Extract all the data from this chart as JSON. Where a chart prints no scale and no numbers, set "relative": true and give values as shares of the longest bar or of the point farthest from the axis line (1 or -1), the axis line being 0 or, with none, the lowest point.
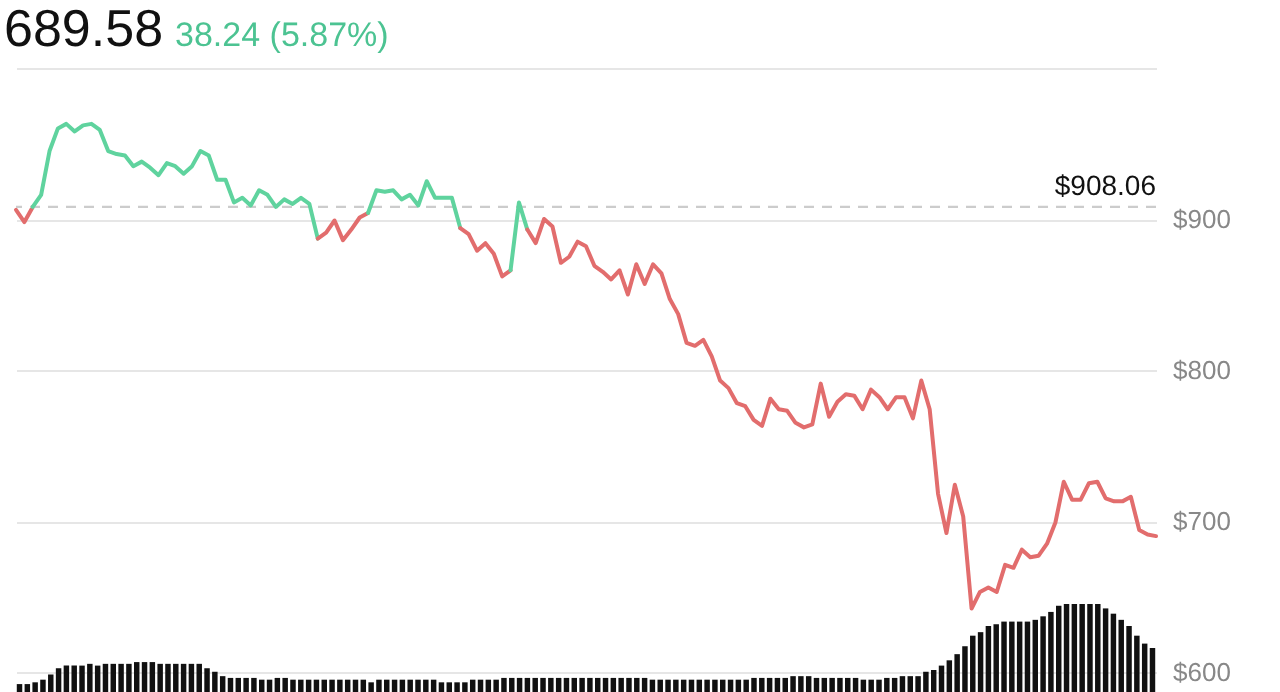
{
  "chart_data": [
    {
      "type": "line",
      "title": "689.58",
      "subtitle": "38.24 (5.87%)",
      "categories": [
        null,
        null,
        null,
        null,
        null,
        null,
        null,
        null,
        null,
        null,
        null,
        null,
        null,
        null,
        null,
        null,
        null,
        null,
        null,
        null,
        null,
        null,
        null,
        null,
        null,
        null,
        null,
        null,
        null,
        null,
        null,
        null,
        null,
        null,
        null,
        null,
        null,
        null,
        null,
        null,
        null,
        null,
        null,
        null,
        null,
        null,
        null,
        null,
        null,
        null,
        null,
        null,
        null,
        null,
        null,
        null,
        null,
        null,
        null,
        null,
        null,
        null,
        null,
        null,
        null,
        null,
        null,
        null,
        null,
        null,
        null,
        null,
        null,
        null,
        null,
        null,
        null,
        null,
        null,
        null,
        null,
        null,
        null,
        null,
        null,
        null,
        null,
        null,
        null,
        null,
        null,
        null,
        null,
        null,
        null,
        null,
        null,
        null,
        null,
        null,
        null,
        null,
        null,
        null,
        null,
        null,
        null,
        null,
        null,
        null,
        null,
        null,
        null,
        null,
        null,
        null,
        null,
        null,
        null,
        null,
        null,
        null,
        null,
        null,
        null,
        null,
        null,
        null,
        null,
        null,
        null,
        null,
        null,
        null,
        null,
        null,
        null
      ],
      "series": [
        {
          "color": "#e26d6d",
          "values": [
            906,
            898,
            908,
            null,
            null,
            null,
            null,
            null,
            null,
            null,
            null,
            null,
            null,
            null,
            null,
            null,
            null,
            null,
            null,
            null,
            null,
            null,
            null,
            null,
            null,
            null,
            null,
            null,
            null,
            null,
            null,
            null,
            null,
            null,
            null,
            null,
            null,
            null,
            null,
            null,
            null,
            null,
            null,
            null,
            null,
            null,
            null,
            null,
            null,
            null,
            null,
            null,
            null,
            null,
            null,
            null,
            null,
            null,
            null,
            null,
            null,
            null,
            null,
            null,
            null,
            null,
            null,
            null,
            null,
            null,
            null,
            null,
            null,
            null,
            null,
            null,
            null,
            null,
            null,
            null,
            null,
            null,
            null,
            null,
            null,
            null,
            null,
            null,
            null,
            null,
            null,
            null,
            null,
            null,
            null,
            null,
            null,
            null,
            null,
            null,
            null,
            null,
            null,
            null,
            null,
            null,
            null,
            null,
            null,
            null,
            null,
            null,
            null,
            null,
            null,
            null,
            null,
            null,
            null,
            null,
            null,
            null,
            null,
            null,
            null,
            null,
            null,
            null,
            null,
            null,
            null,
            null,
            null,
            null,
            null,
            null,
            null
          ]
        },
        {
          "color": "#5fd39e",
          "values": [
            null,
            null,
            908,
            916,
            945,
            960,
            963,
            958,
            962,
            963,
            959,
            945,
            943,
            942,
            935,
            938,
            934,
            929,
            937,
            935,
            930,
            935,
            945,
            942,
            926,
            926,
            911,
            914,
            909,
            919,
            916,
            908,
            913,
            910,
            914,
            910,
            887,
            null,
            null,
            null,
            null,
            null,
            null,
            null,
            null,
            null,
            null,
            null,
            null,
            null,
            null,
            null,
            null,
            null,
            null,
            null,
            null,
            null,
            null,
            null,
            null,
            null,
            null,
            null,
            null,
            null,
            null,
            null,
            null,
            null,
            null,
            null,
            null,
            null,
            null,
            null,
            null,
            null,
            null,
            null,
            null,
            null,
            null,
            null,
            null,
            null,
            null,
            null,
            null,
            null,
            null,
            null,
            null,
            null,
            null,
            null,
            null,
            null,
            null,
            null,
            null,
            null,
            null,
            null,
            null,
            null,
            null,
            null,
            null,
            null,
            null,
            null,
            null,
            null,
            null,
            null,
            null,
            null,
            null,
            null,
            null,
            null,
            null,
            null,
            null,
            null,
            null,
            null,
            null,
            null,
            null,
            null,
            null,
            null,
            null,
            null,
            null
          ]
        },
        {
          "color": "#e26d6d",
          "values": [
            null,
            null,
            null,
            null,
            null,
            null,
            null,
            null,
            null,
            null,
            null,
            null,
            null,
            null,
            null,
            null,
            null,
            null,
            null,
            null,
            null,
            null,
            null,
            null,
            null,
            null,
            null,
            null,
            null,
            null,
            null,
            null,
            null,
            null,
            null,
            null,
            887,
            891,
            899,
            886,
            893,
            901,
            904,
            null,
            null,
            null,
            null,
            null,
            null,
            null,
            null,
            null,
            null,
            null,
            null,
            null,
            null,
            null,
            null,
            null,
            null,
            null,
            null,
            null,
            null,
            null,
            null,
            null,
            null,
            null,
            null,
            null,
            null,
            null,
            null,
            null,
            null,
            null,
            null,
            null,
            null,
            null,
            null,
            null,
            null,
            null,
            null,
            null,
            null,
            null,
            null,
            null,
            null,
            null,
            null,
            null,
            null,
            null,
            null,
            null,
            null,
            null,
            null,
            null,
            null,
            null,
            null,
            null,
            null,
            null,
            null,
            null,
            null,
            null,
            null,
            null,
            null,
            null,
            null,
            null,
            null,
            null,
            null,
            null,
            null,
            null,
            null,
            null,
            null,
            null,
            null,
            null,
            null,
            null,
            null,
            null,
            null
          ]
        },
        {
          "color": "#5fd39e",
          "values": [
            null,
            null,
            null,
            null,
            null,
            null,
            null,
            null,
            null,
            null,
            null,
            null,
            null,
            null,
            null,
            null,
            null,
            null,
            null,
            null,
            null,
            null,
            null,
            null,
            null,
            null,
            null,
            null,
            null,
            null,
            null,
            null,
            null,
            null,
            null,
            null,
            null,
            null,
            null,
            null,
            null,
            null,
            904,
            919,
            918,
            919,
            913,
            916,
            909,
            925,
            914,
            914,
            914,
            894,
            null,
            null,
            null,
            null,
            null,
            null,
            null,
            null,
            null,
            null,
            null,
            null,
            null,
            null,
            null,
            null,
            null,
            null,
            null,
            null,
            null,
            null,
            null,
            null,
            null,
            null,
            null,
            null,
            null,
            null,
            null,
            null,
            null,
            null,
            null,
            null,
            null,
            null,
            null,
            null,
            null,
            null,
            null,
            null,
            null,
            null,
            null,
            null,
            null,
            null,
            null,
            null,
            null,
            null,
            null,
            null,
            null,
            null,
            null,
            null,
            null,
            null,
            null,
            null,
            null,
            null,
            null,
            null,
            null,
            null,
            null,
            null,
            null,
            null,
            null,
            null,
            null,
            null,
            null,
            null,
            null,
            null,
            null
          ]
        },
        {
          "color": "#e26d6d",
          "values": [
            null,
            null,
            null,
            null,
            null,
            null,
            null,
            null,
            null,
            null,
            null,
            null,
            null,
            null,
            null,
            null,
            null,
            null,
            null,
            null,
            null,
            null,
            null,
            null,
            null,
            null,
            null,
            null,
            null,
            null,
            null,
            null,
            null,
            null,
            null,
            null,
            null,
            null,
            null,
            null,
            null,
            null,
            null,
            null,
            null,
            null,
            null,
            null,
            null,
            null,
            null,
            null,
            null,
            894,
            890,
            879,
            884,
            877,
            862,
            866,
            null,
            null,
            null,
            null,
            null,
            null,
            null,
            null,
            null,
            null,
            null,
            null,
            null,
            null,
            null,
            null,
            null,
            null,
            null,
            null,
            null,
            null,
            null,
            null,
            null,
            null,
            null,
            null,
            null,
            null,
            null,
            null,
            null,
            null,
            null,
            null,
            null,
            null,
            null,
            null,
            null,
            null,
            null,
            null,
            null,
            null,
            null,
            null,
            null,
            null,
            null,
            null,
            null,
            null,
            null,
            null,
            null,
            null,
            null,
            null,
            null,
            null,
            null,
            null,
            null,
            null,
            null,
            null,
            null,
            null,
            null,
            null,
            null,
            null,
            null,
            null,
            null
          ]
        },
        {
          "color": "#5fd39e",
          "values": [
            null,
            null,
            null,
            null,
            null,
            null,
            null,
            null,
            null,
            null,
            null,
            null,
            null,
            null,
            null,
            null,
            null,
            null,
            null,
            null,
            null,
            null,
            null,
            null,
            null,
            null,
            null,
            null,
            null,
            null,
            null,
            null,
            null,
            null,
            null,
            null,
            null,
            null,
            null,
            null,
            null,
            null,
            null,
            null,
            null,
            null,
            null,
            null,
            null,
            null,
            null,
            null,
            null,
            null,
            null,
            null,
            null,
            null,
            null,
            866,
            911,
            893,
            null,
            null,
            null,
            null,
            null,
            null,
            null,
            null,
            null,
            null,
            null,
            null,
            null,
            null,
            null,
            null,
            null,
            null,
            null,
            null,
            null,
            null,
            null,
            null,
            null,
            null,
            null,
            null,
            null,
            null,
            null,
            null,
            null,
            null,
            null,
            null,
            null,
            null,
            null,
            null,
            null,
            null,
            null,
            null,
            null,
            null,
            null,
            null,
            null,
            null,
            null,
            null,
            null,
            null,
            null,
            null,
            null,
            null,
            null,
            null,
            null,
            null,
            null,
            null,
            null,
            null,
            null,
            null,
            null,
            null,
            null,
            null,
            null,
            null,
            null
          ]
        },
        {
          "color": "#e26d6d",
          "values": [
            null,
            null,
            null,
            null,
            null,
            null,
            null,
            null,
            null,
            null,
            null,
            null,
            null,
            null,
            null,
            null,
            null,
            null,
            null,
            null,
            null,
            null,
            null,
            null,
            null,
            null,
            null,
            null,
            null,
            null,
            null,
            null,
            null,
            null,
            null,
            null,
            null,
            null,
            null,
            null,
            null,
            null,
            null,
            null,
            null,
            null,
            null,
            null,
            null,
            null,
            null,
            null,
            null,
            null,
            null,
            null,
            null,
            null,
            null,
            null,
            null,
            893,
            884,
            900,
            895,
            871,
            875,
            885,
            882,
            869,
            865,
            860,
            866,
            850,
            870,
            857,
            870,
            864,
            847,
            837,
            818,
            816,
            820,
            809,
            793,
            788,
            778,
            776,
            767,
            763,
            781,
            774,
            773,
            765,
            762,
            764,
            791,
            769,
            779,
            784,
            783,
            774,
            787,
            782,
            774,
            782,
            782,
            768,
            793,
            774,
            718,
            692,
            724,
            703,
            642,
            653,
            656,
            653,
            671,
            669,
            681,
            676,
            677,
            685,
            699,
            726,
            714,
            714,
            725,
            726,
            715,
            713,
            713,
            716,
            694,
            691,
            690
          ]
        }
      ],
      "ylim": [
        600,
        1000
      ],
      "yticks": [
        {
          "value": 600,
          "label": "$600"
        },
        {
          "value": 700,
          "label": "$700"
        },
        {
          "value": 800,
          "label": "$800"
        },
        {
          "value": 900,
          "label": "$900"
        },
        {
          "value": 1000,
          "label": null
        }
      ],
      "grid": "y",
      "tick_labels": "y",
      "ref_lines": [
        {
          "axis": "y",
          "value": 908.06,
          "label": "$908.06",
          "line_style": "dashed",
          "color": "#cccccc"
        }
      ]
    },
    {
      "type": "bar",
      "relative": true,
      "tick_labels": false,
      "color": "#111111",
      "categories": [
        null,
        null,
        null,
        null,
        null,
        null,
        null,
        null,
        null,
        null,
        null,
        null,
        null,
        null,
        null,
        null,
        null,
        null,
        null,
        null,
        null,
        null,
        null,
        null,
        null,
        null,
        null,
        null,
        null,
        null,
        null,
        null,
        null,
        null,
        null,
        null,
        null,
        null,
        null,
        null,
        null,
        null,
        null,
        null,
        null,
        null,
        null,
        null,
        null,
        null,
        null,
        null,
        null,
        null,
        null,
        null,
        null,
        null,
        null,
        null,
        null,
        null,
        null,
        null,
        null,
        null,
        null,
        null,
        null,
        null,
        null,
        null,
        null,
        null,
        null,
        null,
        null,
        null,
        null,
        null,
        null,
        null,
        null,
        null,
        null,
        null,
        null,
        null,
        null,
        null,
        null,
        null,
        null,
        null,
        null,
        null,
        null,
        null,
        null,
        null,
        null,
        null,
        null,
        null,
        null,
        null,
        null,
        null,
        null,
        null,
        null,
        null,
        null,
        null,
        null,
        null,
        null,
        null,
        null,
        null,
        null,
        null,
        null,
        null,
        null,
        null,
        null,
        null,
        null,
        null,
        null,
        null,
        null,
        null,
        null,
        null,
        null,
        null,
        null,
        null,
        null,
        null,
        null,
        null,
        null,
        null
      ],
      "values": [
        0.09,
        0.09,
        0.11,
        0.14,
        0.2,
        0.27,
        0.3,
        0.3,
        0.3,
        0.32,
        0.3,
        0.32,
        0.32,
        0.32,
        0.32,
        0.34,
        0.34,
        0.34,
        0.32,
        0.32,
        0.32,
        0.32,
        0.32,
        0.32,
        0.27,
        0.23,
        0.18,
        0.16,
        0.16,
        0.16,
        0.16,
        0.14,
        0.14,
        0.16,
        0.16,
        0.14,
        0.14,
        0.14,
        0.14,
        0.14,
        0.14,
        0.14,
        0.14,
        0.14,
        0.14,
        0.11,
        0.14,
        0.14,
        0.14,
        0.14,
        0.14,
        0.14,
        0.14,
        0.14,
        0.11,
        0.11,
        0.11,
        0.11,
        0.14,
        0.14,
        0.14,
        0.14,
        0.16,
        0.16,
        0.16,
        0.16,
        0.16,
        0.16,
        0.16,
        0.16,
        0.16,
        0.16,
        0.16,
        0.16,
        0.16,
        0.16,
        0.16,
        0.16,
        0.16,
        0.16,
        0.16,
        0.14,
        0.14,
        0.14,
        0.14,
        0.14,
        0.14,
        0.14,
        0.14,
        0.14,
        0.14,
        0.14,
        0.14,
        0.14,
        0.16,
        0.16,
        0.16,
        0.16,
        0.16,
        0.18,
        0.18,
        0.18,
        0.16,
        0.16,
        0.16,
        0.16,
        0.16,
        0.16,
        0.14,
        0.14,
        0.14,
        0.16,
        0.16,
        0.18,
        0.18,
        0.18,
        0.23,
        0.25,
        0.3,
        0.36,
        0.43,
        0.52,
        0.64,
        0.68,
        0.75,
        0.77,
        0.8,
        0.8,
        0.8,
        0.8,
        0.82,
        0.86,
        0.91,
        0.98,
        1,
        1,
        1,
        1,
        1,
        0.95,
        0.89,
        0.82,
        0.75,
        0.64,
        0.55,
        0.5
      ]
    }
  ]
}
